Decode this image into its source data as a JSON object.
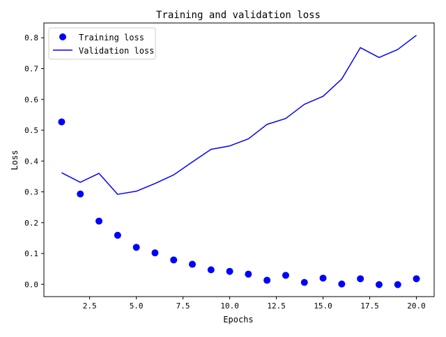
{
  "chart_data": {
    "type": "line",
    "title": "Training and validation loss",
    "xlabel": "Epochs",
    "ylabel": "Loss",
    "xlim": [
      0.05,
      20.95
    ],
    "ylim": [
      -0.04,
      0.848
    ],
    "grid": false,
    "legend_position": "top-left",
    "x_ticks": [
      2.5,
      5.0,
      7.5,
      10.0,
      12.5,
      15.0,
      17.5,
      20.0
    ],
    "x_tick_labels": [
      "2.5",
      "5.0",
      "7.5",
      "10.0",
      "12.5",
      "15.0",
      "17.5",
      "20.0"
    ],
    "y_ticks": [
      0.0,
      0.1,
      0.2,
      0.3,
      0.4,
      0.5,
      0.6,
      0.7,
      0.8
    ],
    "y_tick_labels": [
      "0.0",
      "0.1",
      "0.2",
      "0.3",
      "0.4",
      "0.5",
      "0.6",
      "0.7",
      "0.8"
    ],
    "x": [
      1,
      2,
      3,
      4,
      5,
      6,
      7,
      8,
      9,
      10,
      11,
      12,
      13,
      14,
      15,
      16,
      17,
      18,
      19,
      20
    ],
    "series": [
      {
        "name": "Training loss",
        "style": "markers",
        "color": "#0000ff",
        "values": [
          0.527,
          0.293,
          0.205,
          0.159,
          0.12,
          0.102,
          0.079,
          0.065,
          0.047,
          0.042,
          0.033,
          0.013,
          0.029,
          0.006,
          0.02,
          0.001,
          0.018,
          -0.001,
          -0.001,
          0.018
        ]
      },
      {
        "name": "Validation loss",
        "style": "line",
        "color": "#0000ff",
        "values": [
          0.362,
          0.331,
          0.36,
          0.292,
          0.302,
          0.327,
          0.355,
          0.397,
          0.438,
          0.449,
          0.472,
          0.519,
          0.538,
          0.584,
          0.61,
          0.666,
          0.768,
          0.736,
          0.762,
          0.808
        ]
      }
    ]
  }
}
